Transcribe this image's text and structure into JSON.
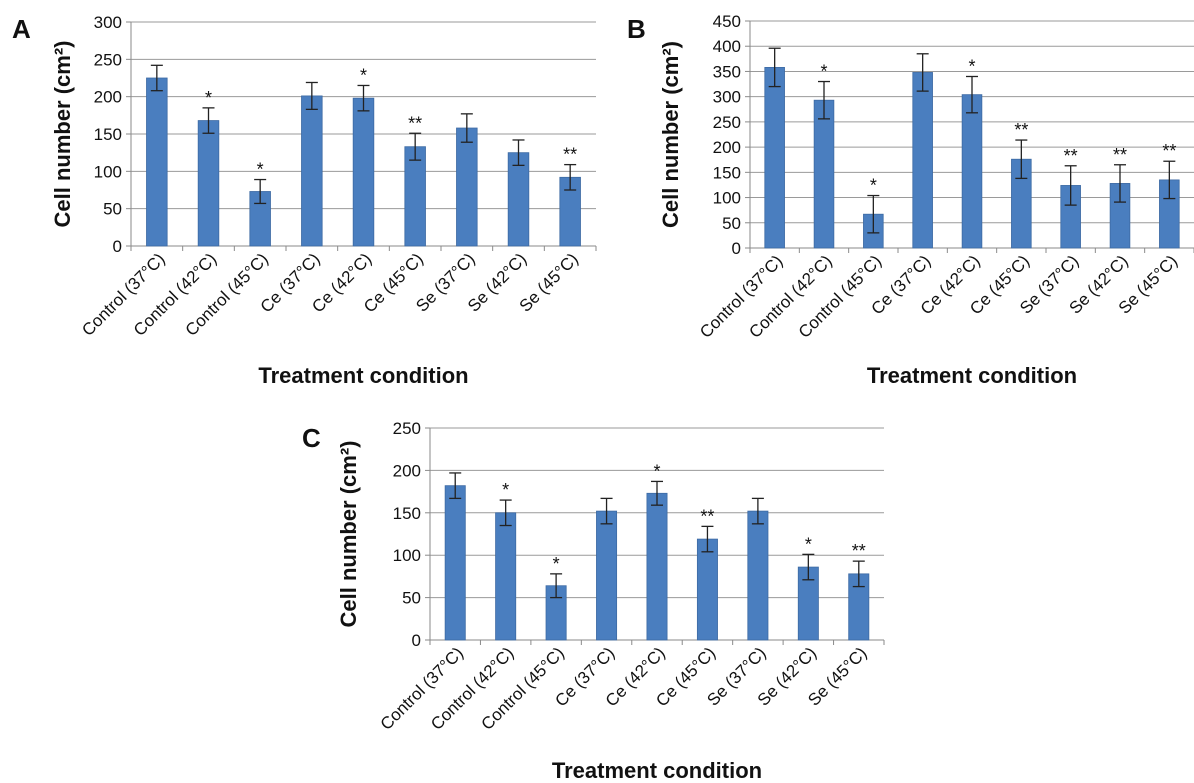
{
  "chart_data": [
    {
      "type": "bar",
      "panel_label": "A",
      "categories": [
        "Control (37°C)",
        "Control (42°C)",
        "Control (45°C)",
        "Ce (37°C)",
        "Ce (42°C)",
        "Ce (45°C)",
        "Se (37°C)",
        "Se (42°C)",
        "Se (45°C)"
      ],
      "values": [
        225,
        168,
        73,
        201,
        198,
        133,
        158,
        125,
        92
      ],
      "errors": [
        17,
        17,
        16,
        18,
        17,
        18,
        19,
        17,
        17
      ],
      "significance": [
        "",
        "*",
        "*",
        "",
        "*",
        "**",
        "",
        "",
        "**"
      ],
      "xlabel": "Treatment condition",
      "ylabel": "Cell number (cm²)",
      "ylim": [
        0,
        300
      ],
      "yticks": [
        0,
        50,
        100,
        150,
        200,
        250,
        300
      ],
      "grid": true,
      "bar_color": "#4a7ebf"
    },
    {
      "type": "bar",
      "panel_label": "B",
      "categories": [
        "Control (37°C)",
        "Control (42°C)",
        "Control (45°C)",
        "Ce (37°C)",
        "Ce (42°C)",
        "Ce (45°C)",
        "Se (37°C)",
        "Se (42°C)",
        "Se (45°C)"
      ],
      "values": [
        358,
        293,
        67,
        348,
        304,
        176,
        124,
        128,
        135
      ],
      "errors": [
        38,
        37,
        37,
        37,
        36,
        38,
        39,
        37,
        37
      ],
      "significance": [
        "",
        "*",
        "*",
        "",
        "*",
        "**",
        "**",
        "**",
        "**"
      ],
      "xlabel": "Treatment condition",
      "ylabel": "Cell number (cm²)",
      "ylim": [
        0,
        450
      ],
      "yticks": [
        0,
        50,
        100,
        150,
        200,
        250,
        300,
        350,
        400,
        450
      ],
      "grid": true,
      "bar_color": "#4a7ebf"
    },
    {
      "type": "bar",
      "panel_label": "C",
      "categories": [
        "Control (37°C)",
        "Control (42°C)",
        "Control (45°C)",
        "Ce (37°C)",
        "Ce (42°C)",
        "Ce (45°C)",
        "Se (37°C)",
        "Se (42°C)",
        "Se (45°C)"
      ],
      "values": [
        182,
        150,
        64,
        152,
        173,
        119,
        152,
        86,
        78
      ],
      "errors": [
        15,
        15,
        14,
        15,
        14,
        15,
        15,
        15,
        15
      ],
      "significance": [
        "",
        "*",
        "*",
        "",
        "*",
        "**",
        "",
        "*",
        "**"
      ],
      "xlabel": "Treatment condition",
      "ylabel": "Cell number (cm²)",
      "ylim": [
        0,
        250
      ],
      "yticks": [
        0,
        50,
        100,
        150,
        200,
        250
      ],
      "grid": true,
      "bar_color": "#4a7ebf"
    }
  ]
}
